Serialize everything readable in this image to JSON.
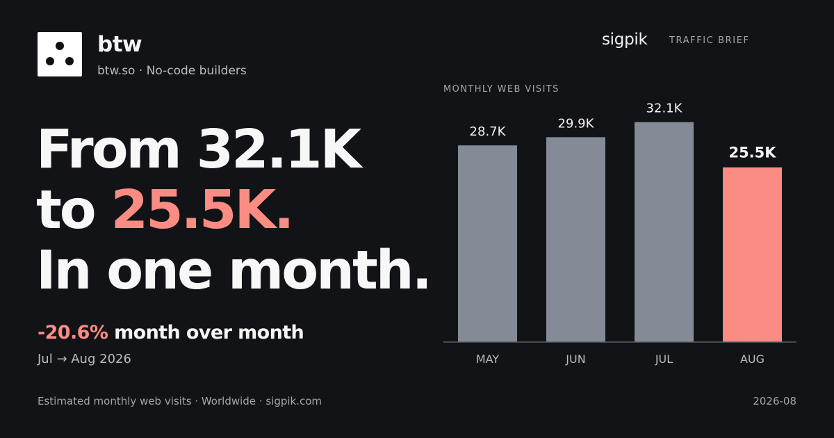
{
  "brand": {
    "name": "btw",
    "subtitle": "btw.so · No-code builders"
  },
  "publisher": {
    "name": "sigpik",
    "label": "TRAFFIC BRIEF"
  },
  "headline": {
    "line1": "From 32.1K",
    "line2_prefix": "to ",
    "line2_accent": "25.5K.",
    "line3": "In one month."
  },
  "change": {
    "percent": "-20.6%",
    "text": " month over month",
    "period": "Jul → Aug 2026"
  },
  "footer": {
    "source": "Estimated monthly web visits · Worldwide · sigpik.com",
    "date": "2026-08"
  },
  "colors": {
    "background": "#121317",
    "bar_default": "#858a97",
    "bar_highlight": "#fa8c84",
    "accent": "#fa8c84"
  },
  "chart_data": {
    "type": "bar",
    "title": "MONTHLY WEB VISITS",
    "categories": [
      "MAY",
      "JUN",
      "JUL",
      "AUG"
    ],
    "values": [
      28.7,
      29.9,
      32.1,
      25.5
    ],
    "value_labels": [
      "28.7K",
      "29.9K",
      "32.1K",
      "25.5K"
    ],
    "unit": "K",
    "highlight_index": 3,
    "ylim": [
      0,
      34.7
    ],
    "grid": false,
    "legend": "none"
  }
}
